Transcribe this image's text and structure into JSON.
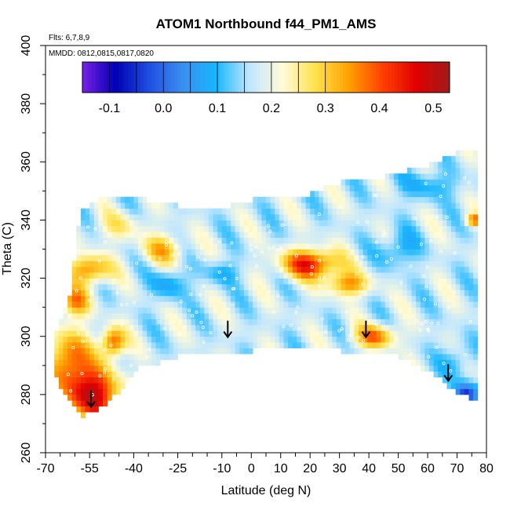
{
  "chart_data": {
    "type": "heatmap",
    "title": "ATOM1 Northbound f44_PM1_AMS",
    "notes": {
      "flights": "Flts: 6,7,8,9",
      "dates": "MMDD: 0812,0815,0817,0820"
    },
    "xlabel": "Latitude (deg N)",
    "ylabel": "Theta (C)",
    "xlim": [
      -70,
      80
    ],
    "ylim": [
      260,
      400
    ],
    "x_ticks": [
      -70,
      -55,
      -40,
      -25,
      -10,
      0,
      10,
      20,
      30,
      40,
      50,
      60,
      70,
      80
    ],
    "y_ticks": [
      260,
      280,
      300,
      320,
      340,
      360,
      380,
      400
    ],
    "colorbar": {
      "range": [
        -0.15,
        0.53
      ],
      "ticks": [
        -0.1,
        0.0,
        0.1,
        0.2,
        0.3,
        0.4,
        0.5
      ],
      "tick_labels": [
        "-0.1",
        "0.0",
        "0.1",
        "0.2",
        "0.3",
        "0.4",
        "0.5"
      ],
      "colors": [
        "#7a1fe6",
        "#0000b4",
        "#1f4fe0",
        "#3a8ef0",
        "#17b6ff",
        "#bfe6ff",
        "#fffbd8",
        "#ffe14a",
        "#ff9f00",
        "#ff4000",
        "#e00000",
        "#a01a1a"
      ]
    },
    "field_top_theta_by_lat": [
      [
        -67,
        298
      ],
      [
        -62,
        312
      ],
      [
        -58,
        342
      ],
      [
        -50,
        347
      ],
      [
        -35,
        346
      ],
      [
        -20,
        343
      ],
      [
        -10,
        343
      ],
      [
        0,
        346
      ],
      [
        10,
        347
      ],
      [
        20,
        348
      ],
      [
        30,
        352
      ],
      [
        40,
        353
      ],
      [
        50,
        355
      ],
      [
        60,
        358
      ],
      [
        70,
        362
      ],
      [
        77,
        363
      ]
    ],
    "field_bottom_theta_by_lat": [
      [
        -67,
        290
      ],
      [
        -64,
        281
      ],
      [
        -58,
        273
      ],
      [
        -52,
        276
      ],
      [
        -45,
        282
      ],
      [
        -38,
        290
      ],
      [
        -25,
        294
      ],
      [
        -10,
        295
      ],
      [
        0,
        296
      ],
      [
        8,
        298
      ],
      [
        20,
        297
      ],
      [
        30,
        296
      ],
      [
        40,
        295
      ],
      [
        50,
        294
      ],
      [
        60,
        289
      ],
      [
        70,
        282
      ],
      [
        77,
        278
      ]
    ],
    "blobs": [
      {
        "lat": -54,
        "theta": 280,
        "r_lat": 9,
        "r_theta": 9,
        "value": 0.5
      },
      {
        "lat": -62,
        "theta": 292,
        "r_lat": 7,
        "r_theta": 10,
        "value": 0.4
      },
      {
        "lat": -47,
        "theta": 298,
        "r_lat": 4,
        "r_theta": 5,
        "value": 0.42
      },
      {
        "lat": -55,
        "theta": 323,
        "r_lat": 7,
        "r_theta": 5,
        "value": 0.38
      },
      {
        "lat": -60,
        "theta": 312,
        "r_lat": 5,
        "r_theta": 5,
        "value": 0.36
      },
      {
        "lat": -30,
        "theta": 330,
        "r_lat": 7,
        "r_theta": 5,
        "value": 0.32
      },
      {
        "lat": 20,
        "theta": 325,
        "r_lat": 10,
        "r_theta": 5,
        "value": 0.45
      },
      {
        "lat": 33,
        "theta": 318,
        "r_lat": 7,
        "r_theta": 4,
        "value": 0.36
      },
      {
        "lat": 42,
        "theta": 300,
        "r_lat": 7,
        "r_theta": 4,
        "value": 0.38
      },
      {
        "lat": 73,
        "theta": 280,
        "r_lat": 4,
        "r_theta": 4,
        "value": -0.05
      },
      {
        "lat": 70,
        "theta": 292,
        "r_lat": 5,
        "r_theta": 6,
        "value": 0.1
      },
      {
        "lat": -28,
        "theta": 318,
        "r_lat": 6,
        "r_theta": 5,
        "value": 0.08
      },
      {
        "lat": -10,
        "theta": 322,
        "r_lat": 6,
        "r_theta": 4,
        "value": 0.1
      },
      {
        "lat": 50,
        "theta": 330,
        "r_lat": 6,
        "r_theta": 6,
        "value": 0.08
      },
      {
        "lat": 76,
        "theta": 340,
        "r_lat": 3,
        "r_theta": 2,
        "value": 0.38
      },
      {
        "lat": 60,
        "theta": 352,
        "r_lat": 10,
        "r_theta": 5,
        "value": 0.1
      },
      {
        "lat": -45,
        "theta": 338,
        "r_lat": 8,
        "r_theta": 5,
        "value": 0.26
      }
    ],
    "arrows": [
      {
        "lat": -54.5,
        "theta": 276
      },
      {
        "lat": -8,
        "theta": 300
      },
      {
        "lat": 39,
        "theta": 300
      },
      {
        "lat": 67,
        "theta": 285
      }
    ]
  }
}
